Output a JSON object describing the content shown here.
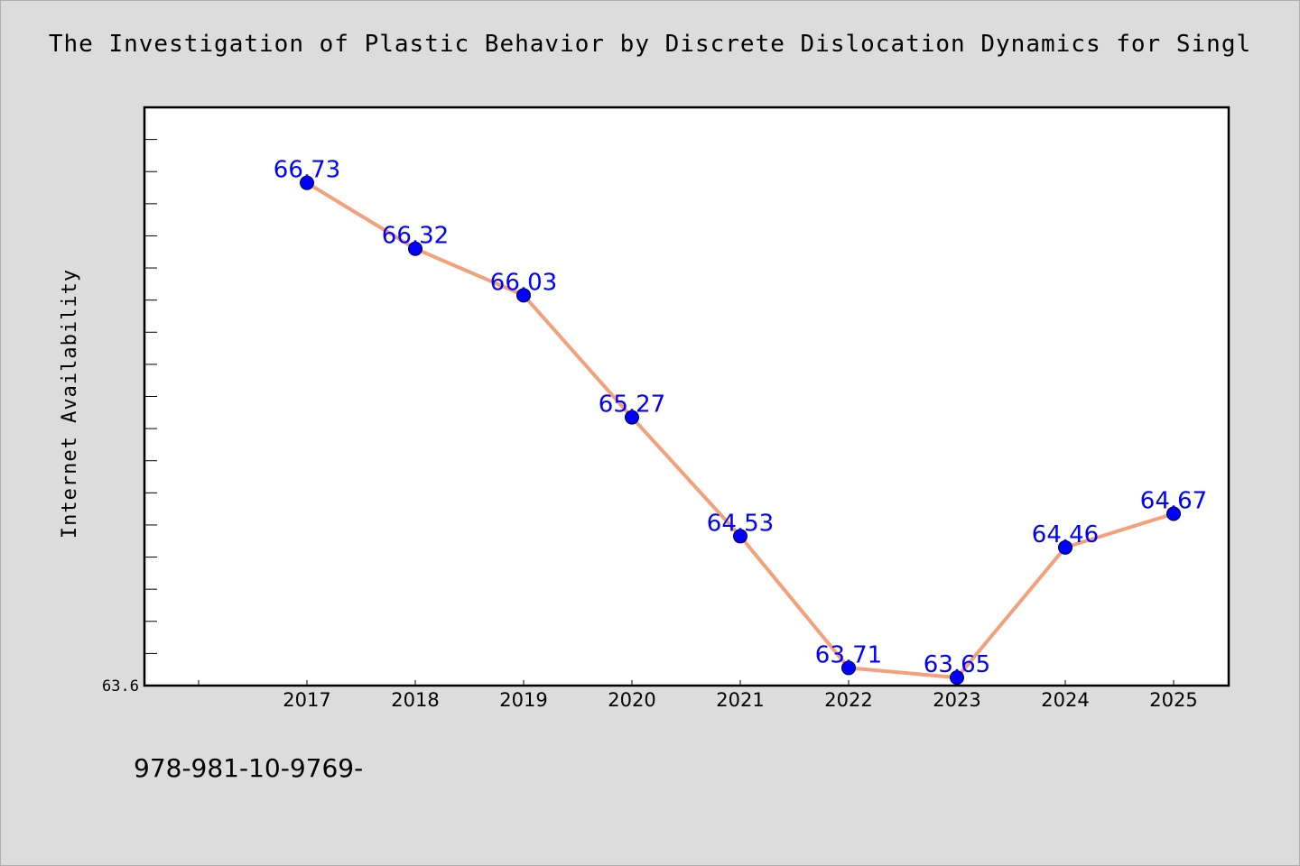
{
  "title": "The Investigation of Plastic Behavior by Discrete Dislocation Dynamics for Singl",
  "footer_text": "978-981-10-9769-",
  "chart_data": {
    "type": "line",
    "title": "The Investigation of Plastic Behavior by Discrete Dislocation Dynamics for Singl",
    "xlabel": "",
    "ylabel": "Internet Availability",
    "categories": [
      "2017",
      "2018",
      "2019",
      "2020",
      "2021",
      "2022",
      "2023",
      "2024",
      "2025"
    ],
    "series": [
      {
        "values": [
          66.73,
          66.32,
          66.03,
          65.27,
          64.53,
          63.71,
          63.65,
          64.46,
          64.67
        ],
        "labels": [
          "66.73",
          "66.32",
          "66.03",
          "65.27",
          "64.53",
          "63.71",
          "63.65",
          "64.46",
          "64.67"
        ]
      }
    ],
    "ylim": [
      63.6,
      67.2
    ],
    "y_tick_labels": [
      {
        "value": 63.6,
        "label": "63.6"
      }
    ],
    "grid": false,
    "legend": "none",
    "colors": {
      "background": "#dcdcdc",
      "plot_background": "#ffffff",
      "line": "#f4a07a",
      "marker": "#0000ff",
      "data_label": "#0000ff",
      "axis": "#000000"
    }
  }
}
